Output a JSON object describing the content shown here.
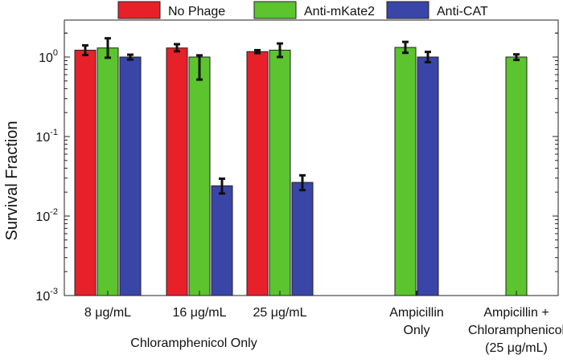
{
  "chart_data": {
    "type": "bar",
    "scale": "log",
    "ylabel": "Survival Fraction",
    "ylim": [
      0.001,
      3
    ],
    "y_ticks": [
      {
        "value": 1,
        "base": "10",
        "exp": "0"
      },
      {
        "value": 0.1,
        "base": "10",
        "exp": "-1"
      },
      {
        "value": 0.01,
        "base": "10",
        "exp": "-2"
      },
      {
        "value": 0.001,
        "base": "10",
        "exp": "-3"
      }
    ],
    "categories": [
      {
        "lines": [
          "8 μg/mL"
        ]
      },
      {
        "lines": [
          "16 μg/mL"
        ]
      },
      {
        "lines": [
          "25 μg/mL"
        ]
      },
      {
        "lines": [
          "Ampicillin",
          "Only"
        ]
      },
      {
        "lines": [
          "Ampicillin +",
          "Chloramphenicol",
          "(25 μg/mL)"
        ]
      }
    ],
    "group_labels": [
      {
        "text": "Chloramphenicol Only",
        "span": [
          0,
          2
        ]
      }
    ],
    "series": [
      {
        "name": "No Phage",
        "color": "#e8202a",
        "values": [
          1.22,
          1.3,
          1.17,
          null,
          null
        ],
        "err_low": [
          1.06,
          1.18,
          1.12,
          null,
          null
        ],
        "err_high": [
          1.4,
          1.45,
          1.22,
          null,
          null
        ]
      },
      {
        "name": "Anti-mKate2",
        "color": "#5cc42e",
        "values": [
          1.3,
          1.0,
          1.22,
          1.32,
          1.0
        ],
        "err_low": [
          0.98,
          0.52,
          1.0,
          1.13,
          0.92
        ],
        "err_high": [
          1.72,
          1.05,
          1.48,
          1.55,
          1.08
        ]
      },
      {
        "name": "Anti-CAT",
        "color": "#3a45a8",
        "values": [
          1.0,
          0.024,
          0.0265,
          1.0,
          null
        ],
        "err_low": [
          0.93,
          0.0192,
          0.0212,
          0.86,
          null
        ],
        "err_high": [
          1.07,
          0.0295,
          0.0325,
          1.16,
          null
        ]
      }
    ],
    "legend_position": "top"
  }
}
